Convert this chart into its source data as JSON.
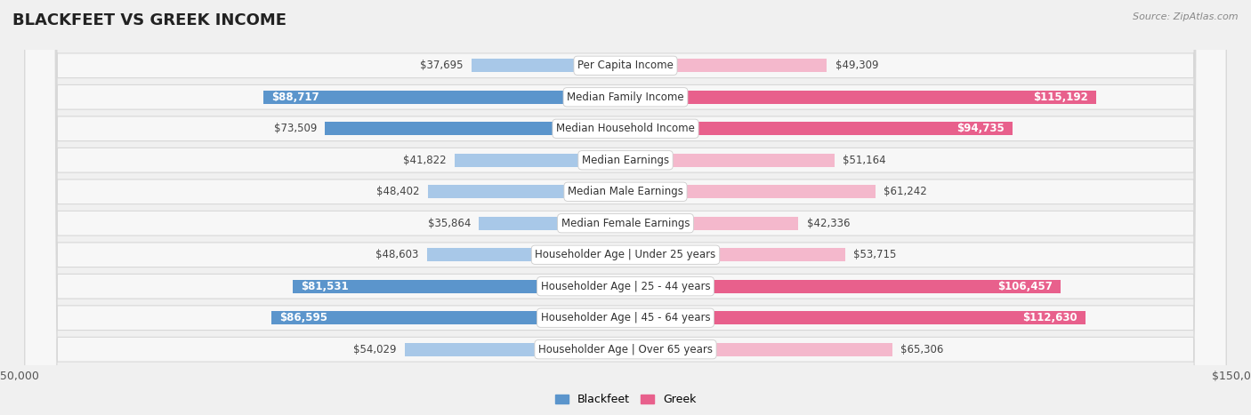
{
  "title": "BLACKFEET VS GREEK INCOME",
  "source": "Source: ZipAtlas.com",
  "categories": [
    "Per Capita Income",
    "Median Family Income",
    "Median Household Income",
    "Median Earnings",
    "Median Male Earnings",
    "Median Female Earnings",
    "Householder Age | Under 25 years",
    "Householder Age | 25 - 44 years",
    "Householder Age | 45 - 64 years",
    "Householder Age | Over 65 years"
  ],
  "blackfeet_values": [
    37695,
    88717,
    73509,
    41822,
    48402,
    35864,
    48603,
    81531,
    86595,
    54029
  ],
  "greek_values": [
    49309,
    115192,
    94735,
    51164,
    61242,
    42336,
    53715,
    106457,
    112630,
    65306
  ],
  "blackfeet_color_light": "#a8c8e8",
  "blackfeet_color_dark": "#5b95cc",
  "greek_color_light": "#f4b8cc",
  "greek_color_dark": "#e8608c",
  "max_value": 150000,
  "background_color": "#f0f0f0",
  "row_bg_color": "#f7f7f7",
  "row_border_color": "#d8d8d8",
  "label_bg_color": "#ffffff",
  "title_fontsize": 13,
  "value_fontsize": 8.5,
  "label_fontsize": 8.5,
  "axis_label_fontsize": 9,
  "white_label_threshold": 80000
}
